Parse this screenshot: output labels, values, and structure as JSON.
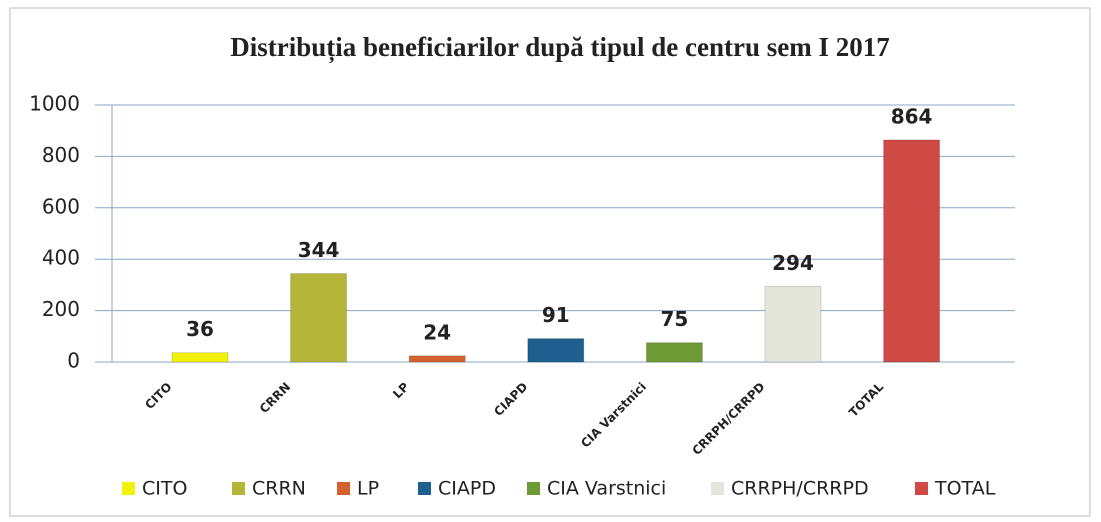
{
  "chart_data": {
    "type": "bar",
    "title": "Distribuția beneficiarilor după tipul de centru sem I 2017",
    "categories": [
      "CITO",
      "CRRN",
      "LP",
      "CIAPD",
      "CIA Varstnici",
      "CRRPH/CRRPD",
      "TOTAL"
    ],
    "values": [
      36,
      344,
      24,
      91,
      75,
      294,
      864
    ],
    "colors": [
      "#f2f20a",
      "#b5b53a",
      "#d2622e",
      "#1f5f8f",
      "#6e9a35",
      "#e4e6dc",
      "#cf4a44"
    ],
    "ylim": [
      0,
      1000
    ],
    "yticks": [
      0,
      200,
      400,
      600,
      800,
      1000
    ],
    "grid": true,
    "legend": "bottom"
  }
}
